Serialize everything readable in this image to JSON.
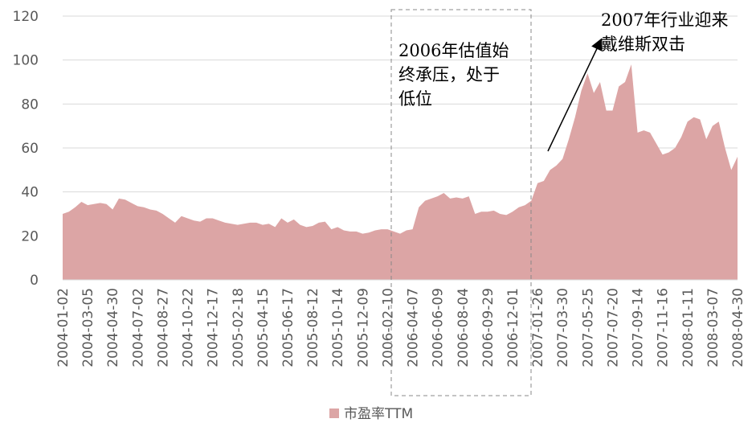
{
  "chart_data": {
    "type": "area",
    "categories": [
      "2004-01-02",
      null,
      null,
      null,
      "2004-03-05",
      null,
      null,
      null,
      "2004-04-30",
      null,
      null,
      null,
      "2004-07-02",
      null,
      null,
      null,
      "2004-08-27",
      null,
      null,
      null,
      "2004-10-22",
      null,
      null,
      null,
      "2004-12-17",
      null,
      null,
      null,
      "2005-02-18",
      null,
      null,
      null,
      "2005-04-15",
      null,
      null,
      null,
      "2005-06-17",
      null,
      null,
      null,
      "2005-08-12",
      null,
      null,
      null,
      "2005-10-14",
      null,
      null,
      null,
      "2005-12-09",
      null,
      null,
      null,
      "2006-02-10",
      null,
      null,
      null,
      "2006-04-07",
      null,
      null,
      null,
      "2006-06-09",
      null,
      null,
      null,
      "2006-08-04",
      null,
      null,
      null,
      "2006-09-29",
      null,
      null,
      null,
      "2006-12-01",
      null,
      null,
      null,
      "2007-01-26",
      null,
      null,
      null,
      "2007-03-30",
      null,
      null,
      null,
      "2007-05-25",
      null,
      null,
      null,
      "2007-07-20",
      null,
      null,
      null,
      "2007-09-14",
      null,
      null,
      null,
      "2007-11-16",
      null,
      null,
      null,
      "2008-01-11",
      null,
      null,
      null,
      "2008-03-07",
      null,
      null,
      null,
      "2008-04-30"
    ],
    "series": [
      {
        "name": "市盈率TTM",
        "color": "#dca5a5",
        "values": [
          30,
          31,
          33,
          35.5,
          34,
          34.5,
          35,
          34.5,
          32,
          37,
          36.5,
          35,
          33.5,
          33,
          32,
          31.5,
          30,
          28,
          26,
          29,
          28,
          27,
          26.5,
          28,
          28,
          27,
          26,
          25.5,
          25,
          25.5,
          26,
          26,
          25,
          25.5,
          24,
          28,
          26,
          27.5,
          25,
          24,
          24.5,
          26,
          26.5,
          23,
          24,
          22.5,
          22,
          22,
          21,
          21.5,
          22.5,
          23,
          23,
          22,
          21,
          22.5,
          23,
          33,
          36,
          37,
          38,
          39.5,
          37,
          37.5,
          37,
          38,
          30,
          31,
          31,
          31.5,
          30,
          29.5,
          31,
          33,
          34,
          36,
          44,
          45,
          50,
          52,
          55,
          64,
          74,
          86,
          94,
          85,
          90,
          77,
          77,
          88,
          90,
          98,
          67,
          68,
          67,
          62,
          57,
          58,
          60,
          65,
          72,
          74,
          73,
          64,
          70,
          72,
          60,
          50,
          56
        ]
      }
    ],
    "ylim": [
      0,
      120
    ],
    "yticks": [
      0,
      20,
      40,
      60,
      80,
      100,
      120
    ],
    "grid": true,
    "annotations": [
      {
        "lines": [
          "2006年估值始",
          "终承压，处于",
          "低位"
        ]
      },
      {
        "lines": [
          "2007年行业迎来",
          "戴维斯双击"
        ]
      }
    ],
    "legend": "bottom"
  }
}
